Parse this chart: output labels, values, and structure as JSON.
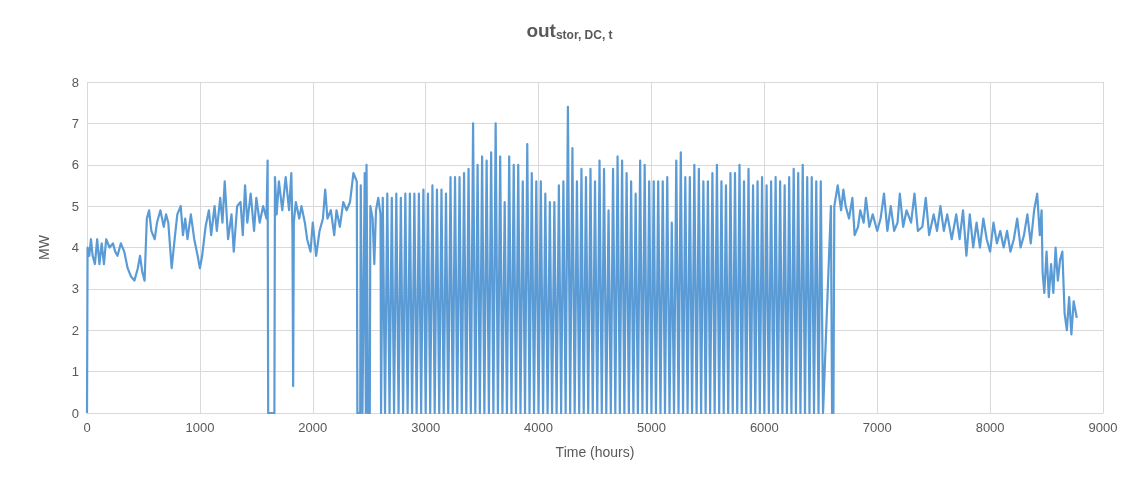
{
  "chart_data": {
    "type": "line",
    "title": "out$_{stor, DC, t}$",
    "xlabel": "Time (hours)",
    "ylabel": "MW",
    "xlim": [
      0,
      9000
    ],
    "xticks": [
      0,
      1000,
      2000,
      3000,
      4000,
      5000,
      6000,
      7000,
      8000,
      9000
    ],
    "ylim": [
      0,
      8
    ],
    "yticks": [
      0,
      1,
      2,
      3,
      4,
      5,
      6,
      7,
      8
    ],
    "grid": true,
    "series": [
      {
        "color": "#5b9bd5",
        "x": [
          0,
          5,
          20,
          35,
          50,
          70,
          90,
          110,
          130,
          150,
          170,
          200,
          230,
          250,
          270,
          300,
          330,
          360,
          390,
          420,
          450,
          470,
          490,
          510,
          530,
          550,
          570,
          600,
          620,
          650,
          680,
          700,
          720,
          750,
          780,
          800,
          830,
          850,
          870,
          890,
          920,
          950,
          980,
          1000,
          1020,
          1050,
          1080,
          1100,
          1130,
          1150,
          1180,
          1200,
          1220,
          1250,
          1280,
          1300,
          1330,
          1360,
          1380,
          1400,
          1420,
          1450,
          1480,
          1500,
          1530,
          1560,
          1590,
          1600,
          1605,
          1660,
          1665,
          1680,
          1700,
          1730,
          1760,
          1790,
          1810,
          1820,
          1826,
          1832,
          1850,
          1880,
          1900,
          1930,
          1950,
          1980,
          2000,
          2030,
          2060,
          2090,
          2110,
          2130,
          2160,
          2190,
          2210,
          2240,
          2270,
          2300,
          2330,
          2360,
          2390,
          2395,
          2420,
          2425,
          2440,
          2460,
          2470,
          2476,
          2490,
          2505,
          2510,
          2530,
          2545,
          2560,
          2580,
          2600,
          2605,
          2620,
          2640,
          2660,
          2680,
          2700,
          2720,
          2740,
          2760,
          2780,
          2800,
          2820,
          2840,
          2860,
          2880,
          2900,
          2920,
          2940,
          2960,
          2980,
          3000,
          3020,
          3040,
          3060,
          3080,
          3100,
          3120,
          3140,
          3160,
          3180,
          3200,
          3220,
          3240,
          3260,
          3280,
          3300,
          3320,
          3340,
          3360,
          3380,
          3400,
          3420,
          3440,
          3460,
          3480,
          3500,
          3520,
          3540,
          3560,
          3580,
          3600,
          3620,
          3640,
          3660,
          3680,
          3700,
          3720,
          3740,
          3760,
          3780,
          3800,
          3820,
          3840,
          3860,
          3880,
          3900,
          3920,
          3940,
          3960,
          3980,
          4000,
          4020,
          4040,
          4060,
          4080,
          4100,
          4120,
          4140,
          4160,
          4180,
          4200,
          4220,
          4240,
          4260,
          4280,
          4300,
          4320,
          4340,
          4360,
          4380,
          4400,
          4420,
          4440,
          4460,
          4480,
          4500,
          4520,
          4540,
          4560,
          4580,
          4600,
          4620,
          4640,
          4660,
          4680,
          4700,
          4720,
          4740,
          4760,
          4780,
          4800,
          4820,
          4840,
          4860,
          4880,
          4900,
          4920,
          4940,
          4960,
          4980,
          5000,
          5020,
          5040,
          5060,
          5080,
          5100,
          5120,
          5140,
          5160,
          5180,
          5200,
          5220,
          5240,
          5260,
          5280,
          5300,
          5320,
          5340,
          5360,
          5380,
          5400,
          5420,
          5440,
          5460,
          5480,
          5500,
          5520,
          5540,
          5560,
          5580,
          5600,
          5620,
          5640,
          5660,
          5680,
          5700,
          5720,
          5740,
          5760,
          5780,
          5800,
          5820,
          5840,
          5860,
          5880,
          5900,
          5920,
          5940,
          5960,
          5980,
          6000,
          6020,
          6040,
          6060,
          6080,
          6100,
          6120,
          6140,
          6160,
          6180,
          6200,
          6220,
          6240,
          6260,
          6280,
          6300,
          6320,
          6340,
          6360,
          6380,
          6400,
          6420,
          6440,
          6460,
          6480,
          6500,
          6520,
          6590,
          6600,
          6612,
          6620,
          6650,
          6680,
          6700,
          6720,
          6750,
          6780,
          6800,
          6830,
          6850,
          6880,
          6900,
          6930,
          6960,
          7000,
          7030,
          7060,
          7090,
          7120,
          7150,
          7180,
          7200,
          7230,
          7260,
          7300,
          7330,
          7360,
          7400,
          7430,
          7460,
          7500,
          7530,
          7560,
          7590,
          7620,
          7660,
          7700,
          7730,
          7760,
          7790,
          7820,
          7850,
          7880,
          7910,
          7940,
          7970,
          8000,
          8030,
          8060,
          8090,
          8120,
          8150,
          8180,
          8210,
          8240,
          8270,
          8300,
          8330,
          8360,
          8390,
          8417,
          8440,
          8456,
          8465,
          8480,
          8500,
          8520,
          8540,
          8560,
          8580,
          8600,
          8620,
          8640,
          8660,
          8680,
          8700,
          8720,
          8740,
          8768
        ],
        "values": [
          0,
          4.0,
          3.8,
          4.2,
          3.8,
          3.6,
          4.2,
          3.6,
          4.1,
          3.6,
          4.2,
          4.0,
          4.1,
          3.9,
          3.8,
          4.1,
          3.9,
          3.5,
          3.3,
          3.2,
          3.5,
          3.8,
          3.4,
          3.2,
          4.7,
          4.9,
          4.4,
          4.2,
          4.6,
          4.9,
          4.5,
          4.8,
          4.6,
          3.5,
          4.3,
          4.8,
          5.0,
          4.3,
          4.7,
          4.2,
          4.8,
          4.2,
          3.8,
          3.5,
          3.8,
          4.5,
          4.9,
          4.3,
          5.0,
          4.4,
          5.2,
          4.6,
          5.6,
          4.2,
          4.8,
          3.9,
          5.0,
          5.1,
          4.3,
          5.5,
          4.6,
          5.3,
          4.4,
          5.2,
          4.6,
          5.0,
          4.7,
          6.1,
          0,
          0,
          5.7,
          4.8,
          5.6,
          4.9,
          5.7,
          4.9,
          5.8,
          4.4,
          0.65,
          4.6,
          5.1,
          4.7,
          5.0,
          4.6,
          4.2,
          3.9,
          4.6,
          3.8,
          4.4,
          4.7,
          5.4,
          4.7,
          4.9,
          4.3,
          4.9,
          4.5,
          5.1,
          4.9,
          5.1,
          5.8,
          5.6,
          0,
          0,
          5.5,
          0,
          5.8,
          0,
          6.0,
          0,
          0,
          5.0,
          4.7,
          3.6,
          4.9,
          5.2,
          4.8,
          0,
          5.2,
          0,
          5.3,
          0,
          5.2,
          0,
          5.3,
          0,
          5.2,
          0,
          5.3,
          0,
          5.3,
          0,
          5.3,
          0,
          5.3,
          0,
          5.4,
          0,
          5.3,
          0,
          5.5,
          0,
          5.4,
          0,
          5.4,
          0,
          5.3,
          0,
          5.7,
          0,
          5.7,
          0,
          5.7,
          0,
          5.8,
          0,
          5.9,
          0,
          7.0,
          0,
          6.0,
          0,
          6.2,
          0,
          6.1,
          0,
          6.3,
          0,
          7.0,
          0,
          6.2,
          0,
          5.1,
          0,
          6.2,
          0,
          6.0,
          0,
          6.0,
          0,
          5.6,
          0,
          6.5,
          0,
          5.8,
          0,
          5.6,
          0,
          5.6,
          0,
          5.3,
          0,
          5.1,
          0,
          5.1,
          0,
          5.5,
          0,
          5.6,
          0,
          7.4,
          0,
          6.4,
          0,
          5.6,
          0,
          5.9,
          0,
          5.7,
          0,
          5.9,
          0,
          5.6,
          0,
          6.1,
          0,
          5.9,
          0,
          4.9,
          0,
          5.9,
          0,
          6.2,
          0,
          6.1,
          0,
          5.8,
          0,
          5.6,
          0,
          5.3,
          0,
          6.1,
          0,
          6.0,
          0,
          5.6,
          0,
          5.6,
          0,
          5.6,
          0,
          5.6,
          0,
          5.7,
          0,
          4.6,
          0,
          6.1,
          0,
          6.3,
          0,
          5.7,
          0,
          5.7,
          0,
          6.0,
          0,
          5.9,
          0,
          5.6,
          0,
          5.6,
          0,
          5.8,
          0,
          6.0,
          0,
          5.6,
          0,
          5.5,
          0,
          5.8,
          0,
          5.8,
          0,
          6.0,
          0,
          5.6,
          0,
          5.9,
          0,
          5.5,
          0,
          5.6,
          0,
          5.7,
          0,
          5.5,
          0,
          5.6,
          0,
          5.7,
          0,
          5.6,
          0,
          5.5,
          0,
          5.7,
          0,
          5.9,
          0,
          5.8,
          0,
          6.0,
          0,
          5.7,
          0,
          5.7,
          0,
          5.6,
          0,
          5.6,
          0,
          5.0,
          0,
          0,
          5.0,
          5.5,
          4.9,
          5.4,
          5.0,
          4.7,
          5.2,
          4.3,
          4.5,
          4.9,
          4.6,
          5.2,
          4.5,
          4.8,
          4.4,
          4.7,
          5.3,
          4.4,
          5.0,
          4.4,
          4.6,
          5.3,
          4.5,
          4.9,
          4.6,
          5.3,
          4.4,
          4.5,
          5.2,
          4.3,
          4.8,
          4.4,
          5.0,
          4.4,
          4.8,
          4.2,
          4.8,
          4.2,
          4.9,
          3.8,
          4.8,
          4.0,
          4.6,
          4.0,
          4.7,
          4.2,
          3.9,
          4.6,
          4.1,
          4.4,
          4.0,
          4.4,
          3.9,
          4.2,
          4.7,
          4.0,
          4.3,
          4.8,
          4.1,
          4.9,
          5.3,
          4.3,
          4.9,
          3.4,
          2.9,
          3.9,
          2.8,
          3.6,
          2.9,
          4.0,
          3.2,
          3.7,
          3.9,
          2.4,
          2.0,
          2.8,
          1.9,
          2.7,
          2.3
        ]
      }
    ]
  }
}
